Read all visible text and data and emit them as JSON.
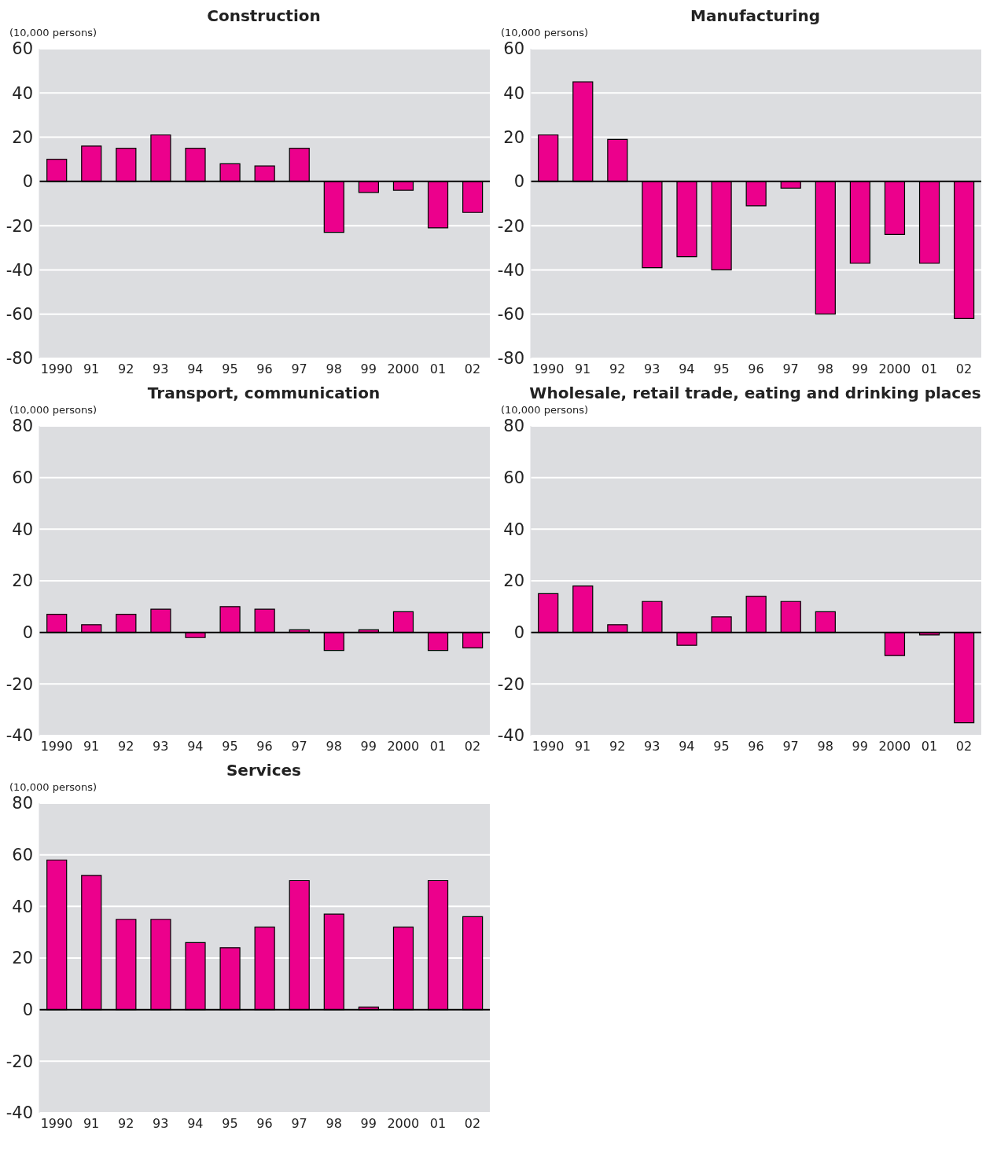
{
  "chart_data": [
    {
      "type": "bar",
      "title": "Construction",
      "ylabel": "(10,000 persons)",
      "categories": [
        "1990",
        "91",
        "92",
        "93",
        "94",
        "95",
        "96",
        "97",
        "98",
        "99",
        "2000",
        "01",
        "02"
      ],
      "values": [
        10,
        16,
        15,
        21,
        15,
        8,
        7,
        15,
        -23,
        -5,
        -4,
        -21,
        -14
      ],
      "color": "#ec008c",
      "ylim": [
        -80,
        60
      ],
      "yticks": [
        -80,
        -60,
        -40,
        -20,
        0,
        20,
        40,
        60
      ],
      "grid": "y",
      "ref_lines": [
        {
          "axis": "y",
          "value": 0,
          "color": "#000000"
        }
      ]
    },
    {
      "type": "bar",
      "title": "Manufacturing",
      "ylabel": "(10,000 persons)",
      "categories": [
        "1990",
        "91",
        "92",
        "93",
        "94",
        "95",
        "96",
        "97",
        "98",
        "99",
        "2000",
        "01",
        "02"
      ],
      "values": [
        21,
        45,
        19,
        -39,
        -34,
        -40,
        -11,
        -3,
        -60,
        -37,
        -24,
        -37,
        -62
      ],
      "color": "#ec008c",
      "ylim": [
        -80,
        60
      ],
      "yticks": [
        -80,
        -60,
        -40,
        -20,
        0,
        20,
        40,
        60
      ],
      "grid": "y",
      "ref_lines": [
        {
          "axis": "y",
          "value": 0,
          "color": "#000000"
        }
      ]
    },
    {
      "type": "bar",
      "title": "Transport, communication",
      "ylabel": "(10,000 persons)",
      "categories": [
        "1990",
        "91",
        "92",
        "93",
        "94",
        "95",
        "96",
        "97",
        "98",
        "99",
        "2000",
        "01",
        "02"
      ],
      "values": [
        7,
        3,
        7,
        9,
        -2,
        10,
        9,
        1,
        -7,
        1,
        8,
        -7,
        -6
      ],
      "color": "#ec008c",
      "ylim": [
        -40,
        80
      ],
      "yticks": [
        -40,
        -20,
        0,
        20,
        40,
        60,
        80
      ],
      "grid": "y",
      "ref_lines": [
        {
          "axis": "y",
          "value": 0,
          "color": "#000000"
        }
      ]
    },
    {
      "type": "bar",
      "title": "Wholesale, retail trade, eating and drinking places",
      "ylabel": "(10,000 persons)",
      "categories": [
        "1990",
        "91",
        "92",
        "93",
        "94",
        "95",
        "96",
        "97",
        "98",
        "99",
        "2000",
        "01",
        "02"
      ],
      "values": [
        15,
        18,
        3,
        12,
        -5,
        6,
        14,
        12,
        8,
        0,
        -9,
        -1,
        -35
      ],
      "color": "#ec008c",
      "ylim": [
        -40,
        80
      ],
      "yticks": [
        -40,
        -20,
        0,
        20,
        40,
        60,
        80
      ],
      "grid": "y",
      "ref_lines": [
        {
          "axis": "y",
          "value": 0,
          "color": "#000000"
        }
      ]
    },
    {
      "type": "bar",
      "title": "Services",
      "ylabel": "(10,000 persons)",
      "categories": [
        "1990",
        "91",
        "92",
        "93",
        "94",
        "95",
        "96",
        "97",
        "98",
        "99",
        "2000",
        "01",
        "02"
      ],
      "values": [
        58,
        52,
        35,
        35,
        26,
        24,
        32,
        50,
        37,
        1,
        32,
        50,
        36
      ],
      "color": "#ec008c",
      "ylim": [
        -40,
        80
      ],
      "yticks": [
        -40,
        -20,
        0,
        20,
        40,
        60,
        80
      ],
      "grid": "y",
      "ref_lines": [
        {
          "axis": "y",
          "value": 0,
          "color": "#000000"
        }
      ]
    }
  ]
}
